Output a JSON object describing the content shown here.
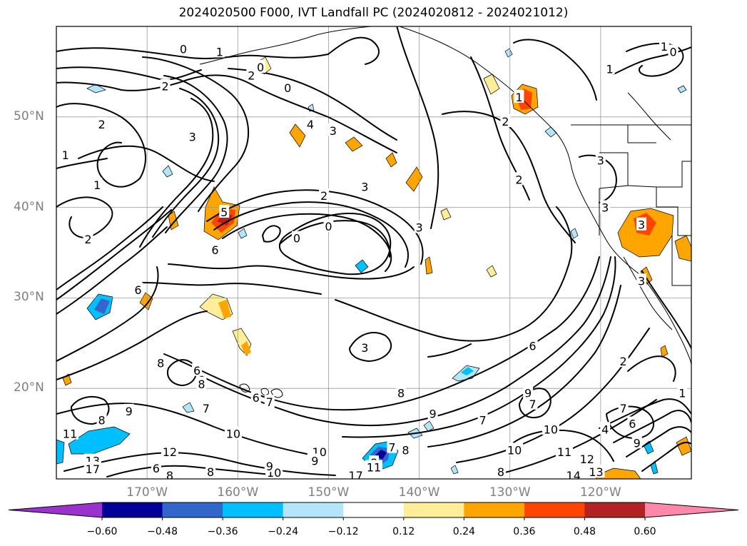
{
  "title": "2024020500 F000, IVT Landfall PC (2024020812 - 2024021012)",
  "map": {
    "lon_range": [
      -180,
      -110
    ],
    "lat_range": [
      10,
      60
    ],
    "projection": "PlateCarree",
    "grid": true,
    "lat_ticks": [
      {
        "value": 50,
        "label": "50°N"
      },
      {
        "value": 40,
        "label": "40°N"
      },
      {
        "value": 30,
        "label": "30°N"
      },
      {
        "value": 20,
        "label": "20°N"
      }
    ],
    "lon_ticks": [
      {
        "value": -170,
        "label": "170°W"
      },
      {
        "value": -160,
        "label": "160°W"
      },
      {
        "value": -150,
        "label": "150°W"
      },
      {
        "value": -140,
        "label": "140°W"
      },
      {
        "value": -130,
        "label": "130°W"
      },
      {
        "value": -120,
        "label": "120°W"
      }
    ],
    "contour_labels": [
      {
        "text": "1",
        "lon": -162,
        "lat": 57.2
      },
      {
        "text": "0",
        "lon": -166,
        "lat": 57.5
      },
      {
        "text": "0",
        "lon": -157.5,
        "lat": 55.5
      },
      {
        "text": "2",
        "lon": -168,
        "lat": 53.4
      },
      {
        "text": "2",
        "lon": -158.5,
        "lat": 54.6
      },
      {
        "text": "0",
        "lon": -154.5,
        "lat": 53.2
      },
      {
        "text": "2",
        "lon": -175,
        "lat": 49.2
      },
      {
        "text": "1",
        "lon": -179,
        "lat": 45.8
      },
      {
        "text": "1",
        "lon": -175.5,
        "lat": 42.5
      },
      {
        "text": "3",
        "lon": -165,
        "lat": 47.8
      },
      {
        "text": "4",
        "lon": -152,
        "lat": 49.2
      },
      {
        "text": "3",
        "lon": -149.5,
        "lat": 48.5
      },
      {
        "text": "2",
        "lon": -176.5,
        "lat": 36.5
      },
      {
        "text": "2",
        "lon": -150.5,
        "lat": 41.3
      },
      {
        "text": "3",
        "lon": -146,
        "lat": 42.3
      },
      {
        "text": "0",
        "lon": -153.5,
        "lat": 36.6
      },
      {
        "text": "0",
        "lon": -150,
        "lat": 37.9
      },
      {
        "text": "3",
        "lon": -140,
        "lat": 37.8
      },
      {
        "text": "6",
        "lon": -162.5,
        "lat": 35.3
      },
      {
        "text": "5",
        "lon": -161.5,
        "lat": 39.5
      },
      {
        "text": "6",
        "lon": -171,
        "lat": 30.9
      },
      {
        "text": "3",
        "lon": -146,
        "lat": 24.5
      },
      {
        "text": "6",
        "lon": -127.5,
        "lat": 24.7
      },
      {
        "text": "2",
        "lon": -130.5,
        "lat": 49.5
      },
      {
        "text": "2",
        "lon": -129,
        "lat": 43.1
      },
      {
        "text": "1",
        "lon": -129,
        "lat": 52.2
      },
      {
        "text": "1",
        "lon": -113,
        "lat": 57.8
      },
      {
        "text": "0",
        "lon": -112,
        "lat": 57.2
      },
      {
        "text": "1",
        "lon": -119,
        "lat": 55.3
      },
      {
        "text": "3",
        "lon": -120,
        "lat": 45.2
      },
      {
        "text": "3",
        "lon": -119.5,
        "lat": 40
      },
      {
        "text": "3",
        "lon": -115.5,
        "lat": 38.1
      },
      {
        "text": "3",
        "lon": -115.5,
        "lat": 31.9
      },
      {
        "text": "2",
        "lon": -117.5,
        "lat": 23
      },
      {
        "text": "1",
        "lon": -111,
        "lat": 19.5
      },
      {
        "text": "7",
        "lon": -117.5,
        "lat": 17.8
      },
      {
        "text": "6",
        "lon": -116.5,
        "lat": 16.1
      },
      {
        "text": "9",
        "lon": -116,
        "lat": 14
      },
      {
        "text": "8",
        "lon": -168.5,
        "lat": 22.8
      },
      {
        "text": "6",
        "lon": -164.5,
        "lat": 22
      },
      {
        "text": "8",
        "lon": -164,
        "lat": 20.5
      },
      {
        "text": "6",
        "lon": -158,
        "lat": 19
      },
      {
        "text": "7",
        "lon": -156.5,
        "lat": 18.5
      },
      {
        "text": "7",
        "lon": -163.5,
        "lat": 17.8
      },
      {
        "text": "8",
        "lon": -175,
        "lat": 16.5
      },
      {
        "text": "9",
        "lon": -172,
        "lat": 17.5
      },
      {
        "text": "8",
        "lon": -142,
        "lat": 19.5
      },
      {
        "text": "9",
        "lon": -138.5,
        "lat": 17.2
      },
      {
        "text": "7",
        "lon": -133,
        "lat": 16.5
      },
      {
        "text": "10",
        "lon": -160.5,
        "lat": 15
      },
      {
        "text": "11",
        "lon": -178.5,
        "lat": 15
      },
      {
        "text": "13",
        "lon": -176,
        "lat": 12
      },
      {
        "text": "12",
        "lon": -167.5,
        "lat": 13
      },
      {
        "text": "10",
        "lon": -151,
        "lat": 13
      },
      {
        "text": "9",
        "lon": -151.5,
        "lat": 12
      },
      {
        "text": "10",
        "lon": -156,
        "lat": 10.7
      },
      {
        "text": "9",
        "lon": -156.5,
        "lat": 11.4
      },
      {
        "text": "8",
        "lon": -163,
        "lat": 10.8
      },
      {
        "text": "8",
        "lon": -167.5,
        "lat": 10.4
      },
      {
        "text": "6",
        "lon": -169,
        "lat": 11.2
      },
      {
        "text": "17",
        "lon": -176,
        "lat": 11.1
      },
      {
        "text": "7",
        "lon": -143,
        "lat": 13.5
      },
      {
        "text": "8",
        "lon": -141.5,
        "lat": 13.2
      },
      {
        "text": "8",
        "lon": -145,
        "lat": 11.8
      },
      {
        "text": "17",
        "lon": -147,
        "lat": 10.4
      },
      {
        "text": "11",
        "lon": -145,
        "lat": 11.3
      },
      {
        "text": "8",
        "lon": -131,
        "lat": 10.8
      },
      {
        "text": "9",
        "lon": -128,
        "lat": 19.5
      },
      {
        "text": "7",
        "lon": -127.5,
        "lat": 18.3
      },
      {
        "text": "10",
        "lon": -125.5,
        "lat": 15.5
      },
      {
        "text": "10",
        "lon": -129.5,
        "lat": 13.2
      },
      {
        "text": "11",
        "lon": -124,
        "lat": 13
      },
      {
        "text": "12",
        "lon": -121.5,
        "lat": 12.2
      },
      {
        "text": "13",
        "lon": -120.5,
        "lat": 10.8
      },
      {
        "text": "14",
        "lon": -123,
        "lat": 10.4
      },
      {
        "text": "4",
        "lon": -119.5,
        "lat": 15.5
      }
    ]
  },
  "colorbar": {
    "colors": [
      "#9933cc",
      "#000099",
      "#3366cc",
      "#00bfff",
      "#b3e5fc",
      "#ffffff",
      "#ffee99",
      "#ffa500",
      "#ff4500",
      "#b22222",
      "#ff88aa"
    ],
    "boundaries": [
      -0.6,
      -0.48,
      -0.36,
      -0.24,
      -0.12,
      0.12,
      0.24,
      0.36,
      0.48,
      0.6
    ],
    "tick_labels": [
      "−0.60",
      "−0.48",
      "−0.36",
      "−0.24",
      "−0.12",
      "0.12",
      "0.24",
      "0.36",
      "0.48",
      "0.60"
    ],
    "extend": "both"
  },
  "colors": {
    "grid": "#999999",
    "contour": "#000000",
    "axis_label": "#7f7f7f"
  }
}
